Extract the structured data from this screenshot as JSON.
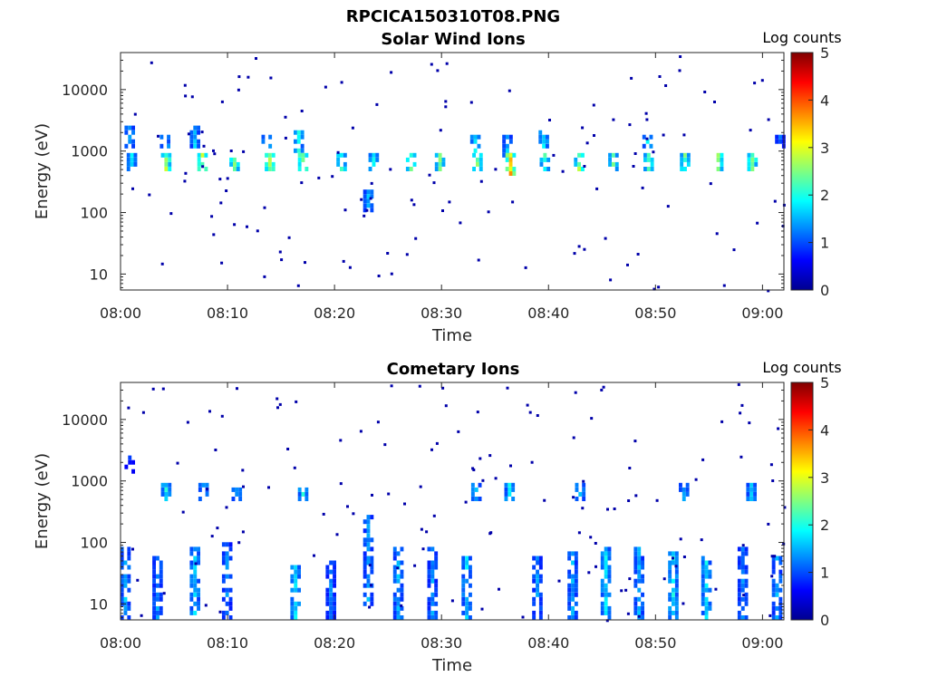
{
  "figure_title": "RPCICA150310T08.PNG",
  "colors": {
    "background": "#ffffff",
    "axes": "#262626",
    "colormap": [
      "#00008f",
      "#0000ff",
      "#0080ff",
      "#00ffff",
      "#80ff80",
      "#ffff00",
      "#ff8000",
      "#ff0000",
      "#800000"
    ]
  },
  "chart_data": [
    {
      "type": "heatmap",
      "title": "Solar Wind Ions",
      "xlabel": "Time",
      "ylabel": "Energy (eV)",
      "x_axis": {
        "type": "time",
        "range": [
          "08:00",
          "09:02"
        ],
        "ticks": [
          "08:00",
          "08:10",
          "08:20",
          "08:30",
          "08:40",
          "08:50",
          "09:00"
        ]
      },
      "y_axis": {
        "scale": "log",
        "range": [
          5.5,
          40000
        ],
        "ticks": [
          10,
          100,
          1000,
          10000
        ],
        "tick_labels": [
          "10",
          "100",
          "1000",
          "10000"
        ]
      },
      "colorbar": {
        "title": "Log counts",
        "range": [
          0,
          5
        ],
        "ticks": [
          "0",
          "1",
          "2",
          "3",
          "4",
          "5"
        ]
      },
      "features": [
        {
          "kind": "band",
          "minute": 0.7,
          "emin": 1100,
          "emax": 2600,
          "log_counts": 1.6
        },
        {
          "kind": "band",
          "minute": 0.9,
          "emin": 450,
          "emax": 900,
          "log_counts": 1.7
        },
        {
          "kind": "band",
          "minute": 4.0,
          "emin": 1100,
          "emax": 2000,
          "log_counts": 1.8
        },
        {
          "kind": "band",
          "minute": 4.1,
          "emin": 450,
          "emax": 950,
          "log_counts": 2.7
        },
        {
          "kind": "band",
          "minute": 6.8,
          "emin": 1200,
          "emax": 2500,
          "log_counts": 1.6
        },
        {
          "kind": "band",
          "minute": 7.5,
          "emin": 450,
          "emax": 950,
          "log_counts": 2.9
        },
        {
          "kind": "band",
          "minute": 10.5,
          "emin": 450,
          "emax": 950,
          "log_counts": 2.5
        },
        {
          "kind": "band",
          "minute": 13.5,
          "emin": 1100,
          "emax": 2000,
          "log_counts": 1.8
        },
        {
          "kind": "band",
          "minute": 13.8,
          "emin": 450,
          "emax": 950,
          "log_counts": 2.8
        },
        {
          "kind": "band",
          "minute": 16.5,
          "emin": 1000,
          "emax": 2300,
          "log_counts": 1.9
        },
        {
          "kind": "band",
          "minute": 16.9,
          "emin": 450,
          "emax": 950,
          "log_counts": 3.0
        },
        {
          "kind": "band",
          "minute": 20.5,
          "emin": 450,
          "emax": 950,
          "log_counts": 2.4
        },
        {
          "kind": "band",
          "minute": 23.0,
          "emin": 100,
          "emax": 250,
          "log_counts": 1.6
        },
        {
          "kind": "band",
          "minute": 23.5,
          "emin": 450,
          "emax": 950,
          "log_counts": 2.0
        },
        {
          "kind": "band",
          "minute": 27.0,
          "emin": 450,
          "emax": 950,
          "log_counts": 2.6
        },
        {
          "kind": "band",
          "minute": 29.7,
          "emin": 450,
          "emax": 950,
          "log_counts": 2.4
        },
        {
          "kind": "band",
          "minute": 33.0,
          "emin": 1000,
          "emax": 2000,
          "log_counts": 1.8
        },
        {
          "kind": "band",
          "minute": 33.2,
          "emin": 450,
          "emax": 950,
          "log_counts": 2.5
        },
        {
          "kind": "band",
          "minute": 36.0,
          "emin": 800,
          "emax": 2000,
          "log_counts": 1.6
        },
        {
          "kind": "band",
          "minute": 36.3,
          "emin": 400,
          "emax": 1000,
          "log_counts": 3.4
        },
        {
          "kind": "band",
          "minute": 39.4,
          "emin": 1100,
          "emax": 2200,
          "log_counts": 1.8
        },
        {
          "kind": "band",
          "minute": 39.5,
          "emin": 420,
          "emax": 950,
          "log_counts": 2.4
        },
        {
          "kind": "band",
          "minute": 42.7,
          "emin": 450,
          "emax": 950,
          "log_counts": 2.6
        },
        {
          "kind": "band",
          "minute": 45.9,
          "emin": 450,
          "emax": 950,
          "log_counts": 2.3
        },
        {
          "kind": "band",
          "minute": 49.1,
          "emin": 1100,
          "emax": 2000,
          "log_counts": 1.8
        },
        {
          "kind": "band",
          "minute": 49.2,
          "emin": 450,
          "emax": 950,
          "log_counts": 2.4
        },
        {
          "kind": "band",
          "minute": 52.6,
          "emin": 450,
          "emax": 950,
          "log_counts": 2.4
        },
        {
          "kind": "band",
          "minute": 55.7,
          "emin": 450,
          "emax": 950,
          "log_counts": 2.6
        },
        {
          "kind": "band",
          "minute": 58.9,
          "emin": 450,
          "emax": 950,
          "log_counts": 2.6
        },
        {
          "kind": "band",
          "minute": 61.5,
          "emin": 1100,
          "emax": 1800,
          "log_counts": 1.2
        }
      ]
    },
    {
      "type": "heatmap",
      "title": "Cometary Ions",
      "xlabel": "Time",
      "ylabel": "Energy (eV)",
      "x_axis": {
        "type": "time",
        "range": [
          "08:00",
          "09:02"
        ],
        "ticks": [
          "08:00",
          "08:10",
          "08:20",
          "08:30",
          "08:40",
          "08:50",
          "09:00"
        ]
      },
      "y_axis": {
        "scale": "log",
        "range": [
          5.5,
          40000
        ],
        "ticks": [
          10,
          100,
          1000,
          10000
        ],
        "tick_labels": [
          "10",
          "100",
          "1000",
          "10000"
        ]
      },
      "colorbar": {
        "title": "Log counts",
        "range": [
          0,
          5
        ],
        "ticks": [
          "0",
          "1",
          "2",
          "3",
          "4",
          "5"
        ]
      },
      "features": [
        {
          "kind": "band",
          "minute": 0.3,
          "emin": 5.5,
          "emax": 90,
          "log_counts": 1.6
        },
        {
          "kind": "band",
          "minute": 3.3,
          "emin": 5.5,
          "emax": 60,
          "log_counts": 1.4
        },
        {
          "kind": "band",
          "minute": 6.8,
          "emin": 5.5,
          "emax": 90,
          "log_counts": 1.7
        },
        {
          "kind": "band",
          "minute": 9.8,
          "emin": 5.5,
          "emax": 100,
          "log_counts": 1.3
        },
        {
          "kind": "band",
          "minute": 16.2,
          "emin": 5.5,
          "emax": 40,
          "log_counts": 1.8
        },
        {
          "kind": "band",
          "minute": 19.5,
          "emin": 5.5,
          "emax": 50,
          "log_counts": 1.3
        },
        {
          "kind": "band",
          "minute": 23.0,
          "emin": 10,
          "emax": 300,
          "log_counts": 1.5
        },
        {
          "kind": "band",
          "minute": 25.8,
          "emin": 5.5,
          "emax": 80,
          "log_counts": 1.6
        },
        {
          "kind": "band",
          "minute": 29.0,
          "emin": 5.5,
          "emax": 90,
          "log_counts": 1.4
        },
        {
          "kind": "band",
          "minute": 32.2,
          "emin": 5.5,
          "emax": 60,
          "log_counts": 1.7
        },
        {
          "kind": "band",
          "minute": 38.8,
          "emin": 5.5,
          "emax": 60,
          "log_counts": 1.4
        },
        {
          "kind": "band",
          "minute": 42.1,
          "emin": 5.5,
          "emax": 70,
          "log_counts": 1.5
        },
        {
          "kind": "band",
          "minute": 45.2,
          "emin": 5.5,
          "emax": 90,
          "log_counts": 1.8
        },
        {
          "kind": "band",
          "minute": 48.3,
          "emin": 5.5,
          "emax": 90,
          "log_counts": 1.5
        },
        {
          "kind": "band",
          "minute": 51.5,
          "emin": 5.5,
          "emax": 70,
          "log_counts": 1.9
        },
        {
          "kind": "band",
          "minute": 54.6,
          "emin": 5.5,
          "emax": 60,
          "log_counts": 1.8
        },
        {
          "kind": "band",
          "minute": 58.0,
          "emin": 5.5,
          "emax": 80,
          "log_counts": 1.3
        },
        {
          "kind": "band",
          "minute": 61.2,
          "emin": 5.5,
          "emax": 60,
          "log_counts": 1.5
        },
        {
          "kind": "band",
          "minute": 0.7,
          "emin": 1300,
          "emax": 2400,
          "log_counts": 0.9
        },
        {
          "kind": "band",
          "minute": 4.1,
          "emin": 500,
          "emax": 900,
          "log_counts": 1.9
        },
        {
          "kind": "band",
          "minute": 7.6,
          "emin": 500,
          "emax": 900,
          "log_counts": 1.8
        },
        {
          "kind": "band",
          "minute": 10.7,
          "emin": 500,
          "emax": 900,
          "log_counts": 1.6
        },
        {
          "kind": "band",
          "minute": 16.9,
          "emin": 500,
          "emax": 900,
          "log_counts": 1.9
        },
        {
          "kind": "band",
          "minute": 33.1,
          "emin": 500,
          "emax": 900,
          "log_counts": 1.7
        },
        {
          "kind": "band",
          "minute": 36.2,
          "emin": 500,
          "emax": 900,
          "log_counts": 1.8
        },
        {
          "kind": "band",
          "minute": 42.8,
          "emin": 500,
          "emax": 900,
          "log_counts": 1.7
        },
        {
          "kind": "band",
          "minute": 52.5,
          "emin": 500,
          "emax": 900,
          "log_counts": 1.6
        },
        {
          "kind": "band",
          "minute": 58.8,
          "emin": 500,
          "emax": 900,
          "log_counts": 1.7
        }
      ]
    }
  ]
}
